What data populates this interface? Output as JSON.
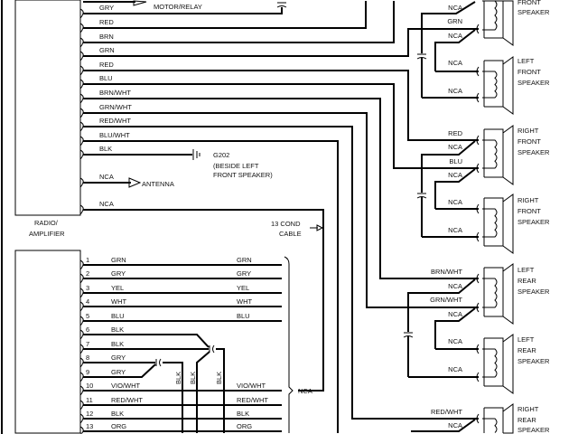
{
  "radio": {
    "label_line1": "RADIO/",
    "label_line2": "AMPLIFIER"
  },
  "motor_relay": "MOTOR/RELAY",
  "top_wires": [
    "GRY",
    "RED",
    "BRN",
    "GRN",
    "RED",
    "BLU",
    "BRN/WHT",
    "GRN/WHT",
    "RED/WHT",
    "BLU/WHT",
    "BLK",
    "NCA",
    "NCA"
  ],
  "ground": {
    "id": "G202",
    "note_line1": "(BESIDE LEFT",
    "note_line2": "FRONT SPEAKER)"
  },
  "antenna": "ANTENNA",
  "cable": {
    "line1": "13 COND",
    "line2": "CABLE",
    "bracket_label": "NCA"
  },
  "speakers": [
    {
      "lines": [
        "FRONT",
        "SPEAKER"
      ]
    },
    {
      "lines": [
        "LEFT",
        "FRONT",
        "SPEAKER"
      ]
    },
    {
      "lines": [
        "RIGHT",
        "FRONT",
        "SPEAKER"
      ]
    },
    {
      "lines": [
        "RIGHT",
        "FRONT",
        "SPEAKER"
      ]
    },
    {
      "lines": [
        "LEFT",
        "REAR",
        "SPEAKER"
      ]
    },
    {
      "lines": [
        "LEFT",
        "REAR",
        "SPEAKER"
      ]
    },
    {
      "lines": [
        "RIGHT",
        "REAR",
        "SPEAKER"
      ]
    }
  ],
  "speaker_wires": [
    "NCA",
    "GRN",
    "NCA",
    "NCA",
    "NCA",
    "RED",
    "NCA",
    "BLU",
    "NCA",
    "NCA",
    "NCA",
    "BRN/WHT",
    "NCA",
    "GRN/WHT",
    "NCA",
    "NCA",
    "NCA",
    "RED/WHT",
    "NCA"
  ],
  "connector_pins": [
    {
      "pin": "1",
      "left": "GRN",
      "right": "GRN"
    },
    {
      "pin": "2",
      "left": "GRY",
      "right": "GRY"
    },
    {
      "pin": "3",
      "left": "YEL",
      "right": "YEL"
    },
    {
      "pin": "4",
      "left": "WHT",
      "right": "WHT"
    },
    {
      "pin": "5",
      "left": "BLU",
      "right": "BLU"
    },
    {
      "pin": "6",
      "left": "BLK",
      "right": ""
    },
    {
      "pin": "7",
      "left": "BLK",
      "right": ""
    },
    {
      "pin": "8",
      "left": "GRY",
      "right": ""
    },
    {
      "pin": "9",
      "left": "GRY",
      "right": ""
    },
    {
      "pin": "10",
      "left": "VIO/WHT",
      "right": "VIO/WHT"
    },
    {
      "pin": "11",
      "left": "RED/WHT",
      "right": "RED/WHT"
    },
    {
      "pin": "12",
      "left": "BLK",
      "right": "BLK"
    },
    {
      "pin": "13",
      "left": "ORG",
      "right": "ORG"
    }
  ],
  "ground_splice_labels": [
    "BLK",
    "BLK",
    "BLK"
  ]
}
